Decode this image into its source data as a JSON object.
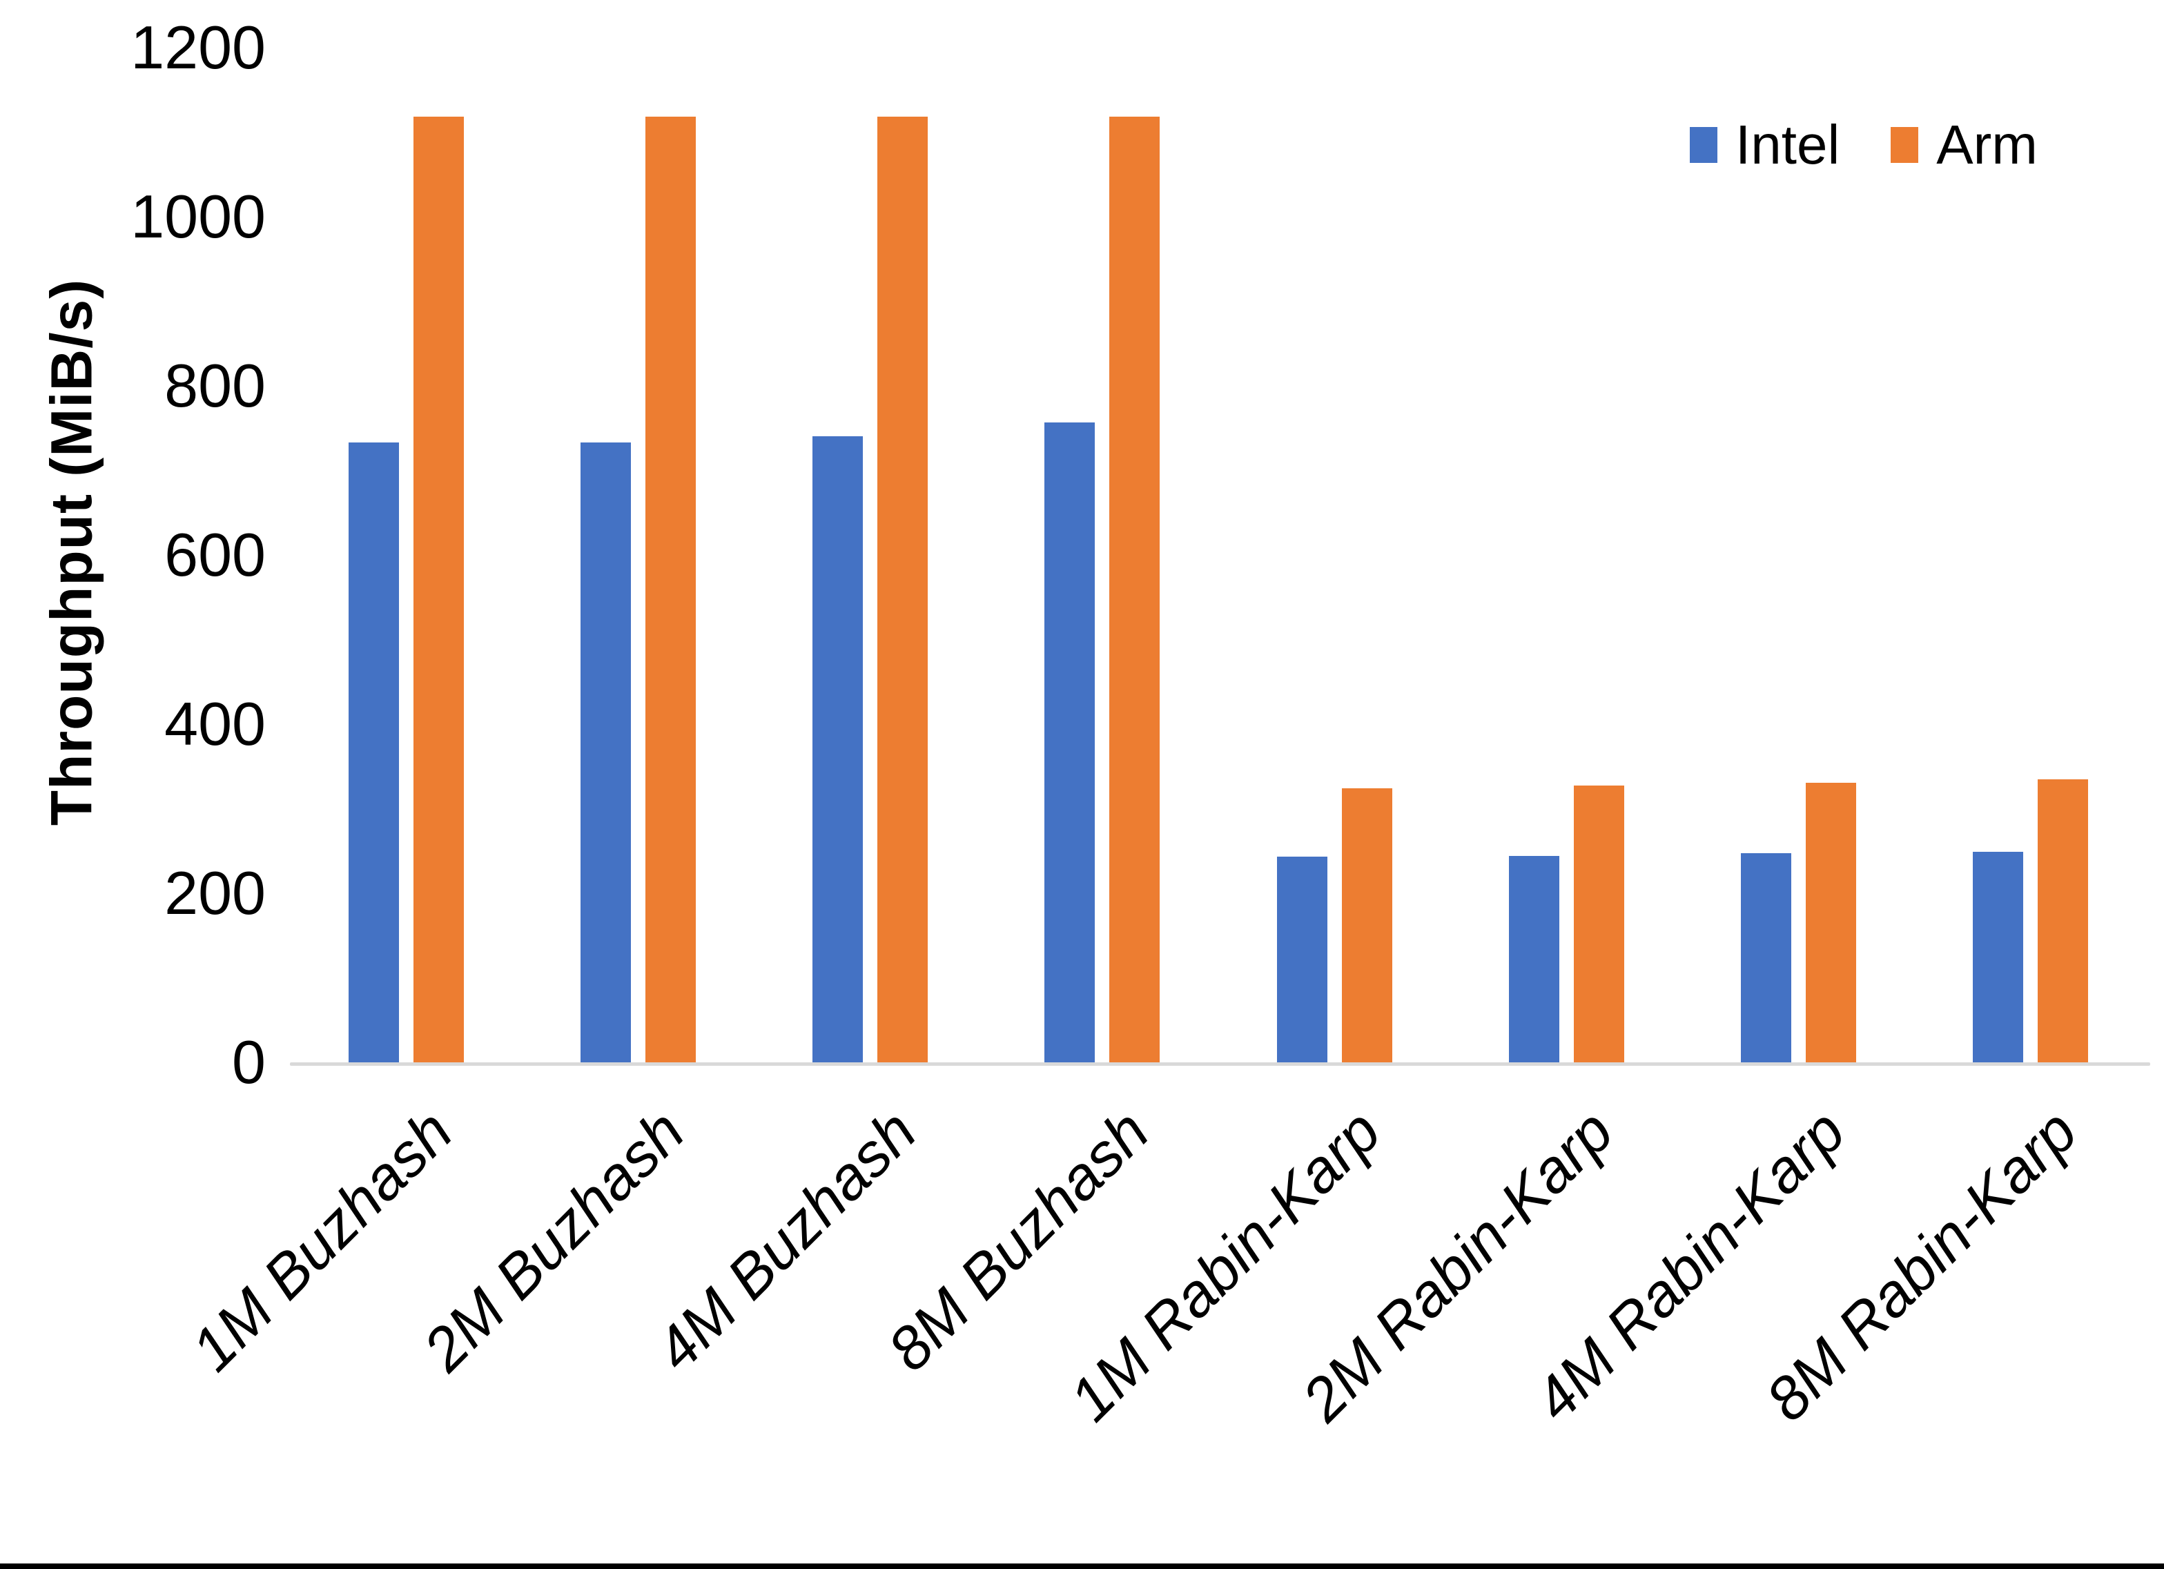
{
  "chart_data": {
    "type": "bar",
    "title": "",
    "xlabel": "",
    "ylabel": "Throughput (MiB/s)",
    "ylim": [
      0,
      1200
    ],
    "yticks": [
      0,
      200,
      400,
      600,
      800,
      1000,
      1200
    ],
    "grid": false,
    "legend_position": "top-right",
    "categories": [
      "1M Buzhash",
      "2M Buzhash",
      "4M Buzhash",
      "8M Buzhash",
      "1M Rabin-Karp",
      "2M Rabin-Karp",
      "4M Rabin-Karp",
      "8M Rabin-Karp"
    ],
    "series": [
      {
        "name": "Intel",
        "color": "#4472C4",
        "values": [
          735,
          735,
          742,
          758,
          245,
          246,
          249,
          251
        ]
      },
      {
        "name": "Arm",
        "color": "#ED7D31",
        "values": [
          1120,
          1120,
          1120,
          1120,
          326,
          329,
          332,
          336
        ]
      }
    ],
    "axis_line_color": "#D9D9D9"
  }
}
